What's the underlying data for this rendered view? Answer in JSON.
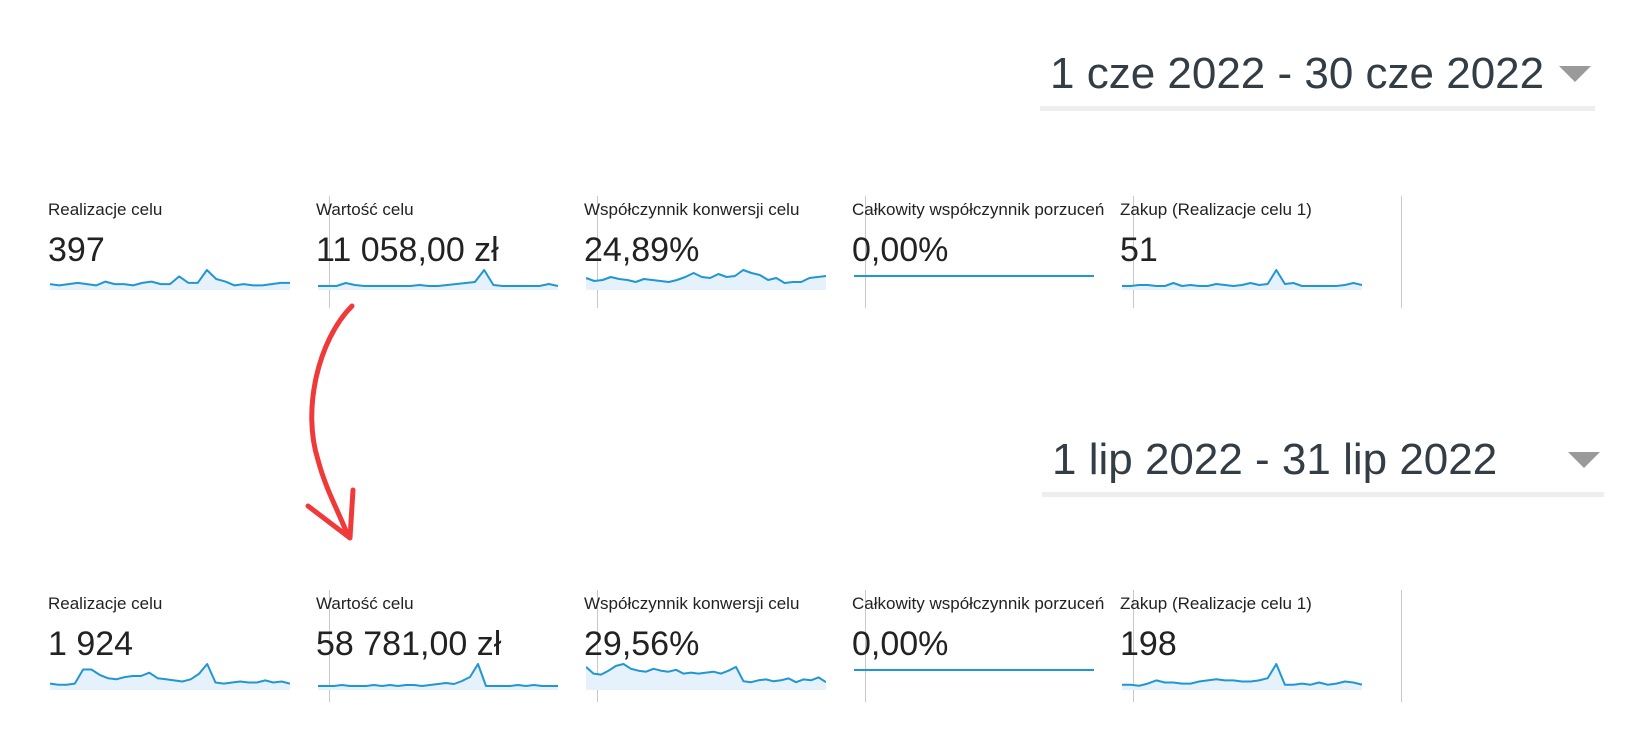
{
  "periods": [
    {
      "date_range": "1 cze 2022 - 30 cze 2022",
      "metrics": [
        {
          "label": "Realizacje celu",
          "value": "397",
          "spark": [
            3,
            2,
            3,
            4,
            3,
            2,
            5,
            3,
            3,
            2,
            4,
            5,
            3,
            3,
            9,
            4,
            4,
            14,
            7,
            5,
            2,
            3,
            2,
            2,
            3,
            4,
            4
          ]
        },
        {
          "label": "Wartość celu",
          "value": "11 058,00 zł",
          "spark": [
            2,
            2,
            2,
            5,
            3,
            2,
            2,
            2,
            2,
            2,
            2,
            3,
            2,
            2,
            3,
            4,
            5,
            6,
            18,
            3,
            2,
            2,
            2,
            2,
            2,
            4,
            2
          ]
        },
        {
          "label": "Współczynnik konwersji celu",
          "value": "24,89%",
          "spark": [
            10,
            7,
            8,
            11,
            9,
            8,
            6,
            9,
            8,
            7,
            6,
            8,
            11,
            15,
            11,
            10,
            14,
            11,
            12,
            18,
            15,
            13,
            8,
            10,
            5,
            6,
            6,
            10,
            11,
            12
          ]
        },
        {
          "label": "Całkowity współczynnik porzuceń",
          "value": "0,00%",
          "spark": [
            10,
            10,
            10,
            10,
            10,
            10,
            10,
            10,
            10,
            10
          ]
        },
        {
          "label": "Zakup (Realizacje celu 1)",
          "value": "51",
          "spark": [
            2,
            2,
            3,
            3,
            2,
            2,
            5,
            2,
            3,
            2,
            2,
            4,
            3,
            2,
            3,
            5,
            3,
            4,
            18,
            4,
            5,
            2,
            2,
            2,
            2,
            2,
            3,
            5,
            3
          ]
        }
      ]
    },
    {
      "date_range": "1 lip 2022 - 31 lip 2022",
      "metrics": [
        {
          "label": "Realizacje celu",
          "value": "1 924",
          "spark": [
            4,
            3,
            3,
            4,
            17,
            17,
            12,
            9,
            8,
            10,
            11,
            11,
            14,
            9,
            8,
            7,
            6,
            8,
            13,
            22,
            5,
            4,
            5,
            6,
            5,
            5,
            7,
            5,
            6,
            4
          ]
        },
        {
          "label": "Wartość celu",
          "value": "58 781,00 zł",
          "spark": [
            2,
            2,
            2,
            3,
            2,
            2,
            2,
            3,
            2,
            3,
            2,
            3,
            3,
            2,
            3,
            4,
            5,
            4,
            7,
            11,
            24,
            2,
            2,
            2,
            2,
            3,
            2,
            3,
            2,
            2,
            2
          ]
        },
        {
          "label": "Współczynnik konwersji celu",
          "value": "29,56%",
          "spark": [
            22,
            15,
            14,
            18,
            23,
            25,
            20,
            18,
            17,
            20,
            18,
            17,
            19,
            15,
            16,
            15,
            16,
            17,
            15,
            18,
            22,
            7,
            6,
            8,
            9,
            7,
            8,
            10,
            6,
            9,
            8,
            11,
            6
          ]
        },
        {
          "label": "Całkowity współczynnik porzuceń",
          "value": "0,00%",
          "spark": [
            10,
            10,
            10,
            10,
            10,
            10,
            10,
            10,
            10,
            10
          ]
        },
        {
          "label": "Zakup (Realizacje celu 1)",
          "value": "198",
          "spark": [
            3,
            3,
            2,
            4,
            7,
            5,
            5,
            4,
            4,
            6,
            7,
            8,
            7,
            7,
            6,
            6,
            7,
            9,
            22,
            3,
            3,
            4,
            3,
            5,
            3,
            4,
            6,
            5,
            3
          ]
        }
      ]
    }
  ],
  "colors": {
    "spark_line": "#2196d3",
    "spark_fill": "#e6f2fb",
    "arrow": "#f03a3a"
  },
  "icons": {
    "dropdown": "triangle-down-icon",
    "annotation": "curved-arrow-icon"
  }
}
